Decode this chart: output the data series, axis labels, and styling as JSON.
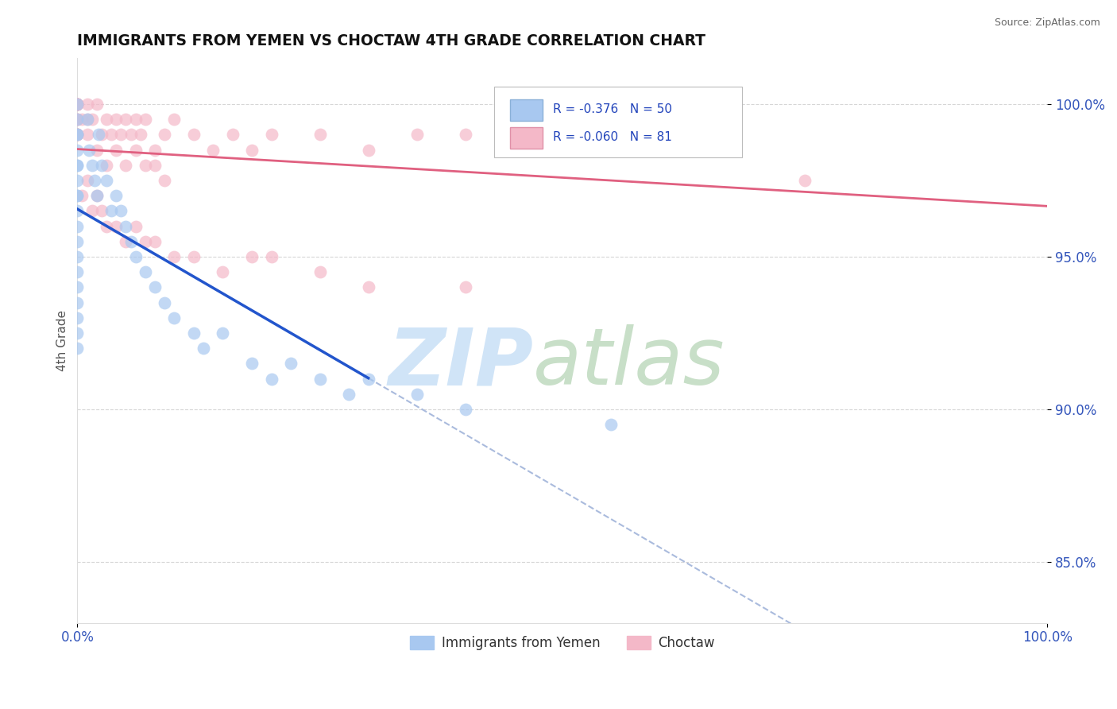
{
  "title": "IMMIGRANTS FROM YEMEN VS CHOCTAW 4TH GRADE CORRELATION CHART",
  "source_text": "Source: ZipAtlas.com",
  "ylabel": "4th Grade",
  "legend_labels": [
    "Immigrants from Yemen",
    "Choctaw"
  ],
  "r_blue": -0.376,
  "n_blue": 50,
  "r_pink": -0.06,
  "n_pink": 81,
  "blue_color": "#a8c8f0",
  "pink_color": "#f4b8c8",
  "blue_line_color": "#2255cc",
  "pink_line_color": "#e06080",
  "blue_scatter_x": [
    0.0,
    0.0,
    0.0,
    0.0,
    0.0,
    0.0,
    0.0,
    0.0,
    0.0,
    0.0,
    0.0,
    0.0,
    0.0,
    0.0,
    0.0,
    0.0,
    0.0,
    0.0,
    0.0,
    0.0,
    1.0,
    1.2,
    1.5,
    1.8,
    2.0,
    2.2,
    2.5,
    3.0,
    3.5,
    4.0,
    4.5,
    5.0,
    5.5,
    6.0,
    7.0,
    8.0,
    9.0,
    10.0,
    12.0,
    13.0,
    15.0,
    18.0,
    20.0,
    22.0,
    25.0,
    28.0,
    30.0,
    35.0,
    40.0,
    55.0
  ],
  "blue_scatter_y": [
    100.0,
    99.5,
    99.0,
    98.5,
    98.0,
    97.5,
    97.0,
    96.5,
    96.0,
    95.5,
    95.0,
    94.5,
    94.0,
    93.5,
    93.0,
    92.5,
    92.0,
    99.0,
    98.0,
    97.0,
    99.5,
    98.5,
    98.0,
    97.5,
    97.0,
    99.0,
    98.0,
    97.5,
    96.5,
    97.0,
    96.5,
    96.0,
    95.5,
    95.0,
    94.5,
    94.0,
    93.5,
    93.0,
    92.5,
    92.0,
    92.5,
    91.5,
    91.0,
    91.5,
    91.0,
    90.5,
    91.0,
    90.5,
    90.0,
    89.5
  ],
  "pink_scatter_x": [
    0.0,
    0.0,
    0.0,
    0.0,
    0.0,
    0.0,
    0.0,
    0.0,
    0.0,
    0.0,
    0.0,
    0.0,
    0.0,
    0.0,
    0.0,
    0.0,
    0.0,
    0.0,
    0.0,
    0.0,
    1.0,
    1.0,
    1.5,
    2.0,
    2.5,
    3.0,
    3.5,
    4.0,
    4.5,
    5.0,
    5.5,
    6.0,
    6.5,
    7.0,
    8.0,
    9.0,
    10.0,
    12.0,
    14.0,
    16.0,
    18.0,
    20.0,
    25.0,
    30.0,
    35.0,
    40.0,
    45.0,
    50.0,
    55.0,
    60.0,
    0.5,
    1.0,
    2.0,
    3.0,
    4.0,
    5.0,
    6.0,
    7.0,
    8.0,
    9.0,
    0.5,
    1.0,
    1.5,
    2.0,
    2.5,
    3.0,
    4.0,
    5.0,
    6.0,
    7.0,
    8.0,
    10.0,
    12.0,
    15.0,
    18.0,
    20.0,
    25.0,
    30.0,
    40.0,
    65.0,
    75.0
  ],
  "pink_scatter_y": [
    100.0,
    100.0,
    100.0,
    100.0,
    100.0,
    100.0,
    100.0,
    100.0,
    100.0,
    100.0,
    100.0,
    100.0,
    99.5,
    99.5,
    99.5,
    99.0,
    99.0,
    99.0,
    99.0,
    99.0,
    100.0,
    99.5,
    99.5,
    100.0,
    99.0,
    99.5,
    99.0,
    99.5,
    99.0,
    99.5,
    99.0,
    99.5,
    99.0,
    99.5,
    98.5,
    99.0,
    99.5,
    99.0,
    98.5,
    99.0,
    98.5,
    99.0,
    99.0,
    98.5,
    99.0,
    99.0,
    98.5,
    99.0,
    99.0,
    99.0,
    99.5,
    99.0,
    98.5,
    98.0,
    98.5,
    98.0,
    98.5,
    98.0,
    98.0,
    97.5,
    97.0,
    97.5,
    96.5,
    97.0,
    96.5,
    96.0,
    96.0,
    95.5,
    96.0,
    95.5,
    95.5,
    95.0,
    95.0,
    94.5,
    95.0,
    95.0,
    94.5,
    94.0,
    94.0,
    100.0,
    97.5
  ],
  "xlim": [
    0.0,
    100.0
  ],
  "ylim": [
    83.0,
    101.5
  ],
  "yticks": [
    85.0,
    90.0,
    95.0,
    100.0
  ],
  "ytick_labels": [
    "85.0%",
    "90.0%",
    "95.0%",
    "100.0%"
  ],
  "xtick_labels": [
    "0.0%",
    "100.0%"
  ],
  "blue_line_solid_end": 30.0,
  "blue_line_dash_end": 100.0,
  "grid_color": "#cccccc",
  "watermark_zip_color": "#d0e4f7",
  "watermark_atlas_color": "#c8dfc8"
}
